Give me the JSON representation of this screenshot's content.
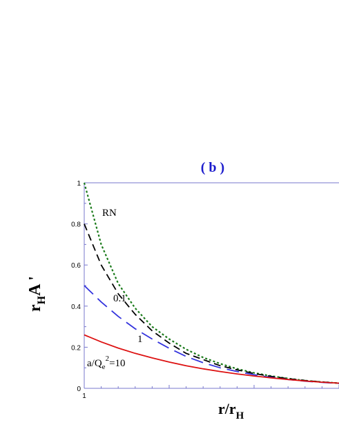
{
  "chart_data": {
    "type": "line",
    "title": "( b )",
    "xlabel": {
      "main": "r/r",
      "sub": "H"
    },
    "ylabel": {
      "main": "r",
      "sub": "H",
      "rest": "A '"
    },
    "xlim": [
      1,
      4
    ],
    "ylim": [
      0,
      1
    ],
    "x_tick_labels": [
      {
        "value": 1,
        "label": "1"
      }
    ],
    "y_tick_labels": [
      {
        "value": 0,
        "label": "0"
      },
      {
        "value": 0.2,
        "label": "0.2"
      },
      {
        "value": 0.4,
        "label": "0.4"
      },
      {
        "value": 0.6,
        "label": "0.6"
      },
      {
        "value": 0.8,
        "label": "0.8"
      },
      {
        "value": 1,
        "label": "1"
      }
    ],
    "grid": false,
    "series": [
      {
        "name": "RN",
        "color": "#1a7a1a",
        "dash": "dotted",
        "x": [
          1.0,
          1.2,
          1.4,
          1.6,
          1.8,
          2.0,
          2.2,
          2.4,
          2.6,
          2.8,
          3.0,
          3.2,
          3.4,
          3.6,
          3.8,
          4.0
        ],
        "values": [
          1.0,
          0.7,
          0.51,
          0.39,
          0.3,
          0.24,
          0.19,
          0.15,
          0.12,
          0.095,
          0.075,
          0.06,
          0.048,
          0.038,
          0.031,
          0.025
        ]
      },
      {
        "name": "0.1",
        "color": "#000000",
        "dash": "dashed",
        "x": [
          1.0,
          1.2,
          1.4,
          1.6,
          1.8,
          2.0,
          2.2,
          2.4,
          2.6,
          2.8,
          3.0,
          3.2,
          3.4,
          3.6,
          3.8,
          4.0
        ],
        "values": [
          0.8,
          0.6,
          0.46,
          0.36,
          0.28,
          0.22,
          0.17,
          0.14,
          0.11,
          0.09,
          0.072,
          0.058,
          0.047,
          0.038,
          0.031,
          0.025
        ]
      },
      {
        "name": "1",
        "color": "#3333dd",
        "dash": "longdash",
        "x": [
          1.0,
          1.2,
          1.4,
          1.6,
          1.8,
          2.0,
          2.2,
          2.4,
          2.6,
          2.8,
          3.0,
          3.2,
          3.4,
          3.6,
          3.8,
          4.0
        ],
        "values": [
          0.5,
          0.42,
          0.35,
          0.29,
          0.24,
          0.195,
          0.155,
          0.125,
          0.1,
          0.082,
          0.066,
          0.053,
          0.043,
          0.035,
          0.029,
          0.024
        ]
      },
      {
        "name": "a/Q_e^2=10",
        "color": "#dd1111",
        "dash": "solid",
        "x": [
          1.0,
          1.2,
          1.4,
          1.6,
          1.8,
          2.0,
          2.2,
          2.4,
          2.6,
          2.8,
          3.0,
          3.2,
          3.4,
          3.6,
          3.8,
          4.0
        ],
        "values": [
          0.26,
          0.226,
          0.196,
          0.17,
          0.148,
          0.128,
          0.11,
          0.095,
          0.082,
          0.07,
          0.06,
          0.051,
          0.043,
          0.036,
          0.03,
          0.025
        ]
      }
    ],
    "annotations": [
      {
        "id": "rn",
        "text": "RN"
      },
      {
        "id": "p01",
        "text": "0.1"
      },
      {
        "id": "one",
        "text": "1"
      },
      {
        "id": "ten",
        "text": "a/Q",
        "sub": "e",
        "sup": "2",
        "rest": "=10"
      }
    ]
  }
}
